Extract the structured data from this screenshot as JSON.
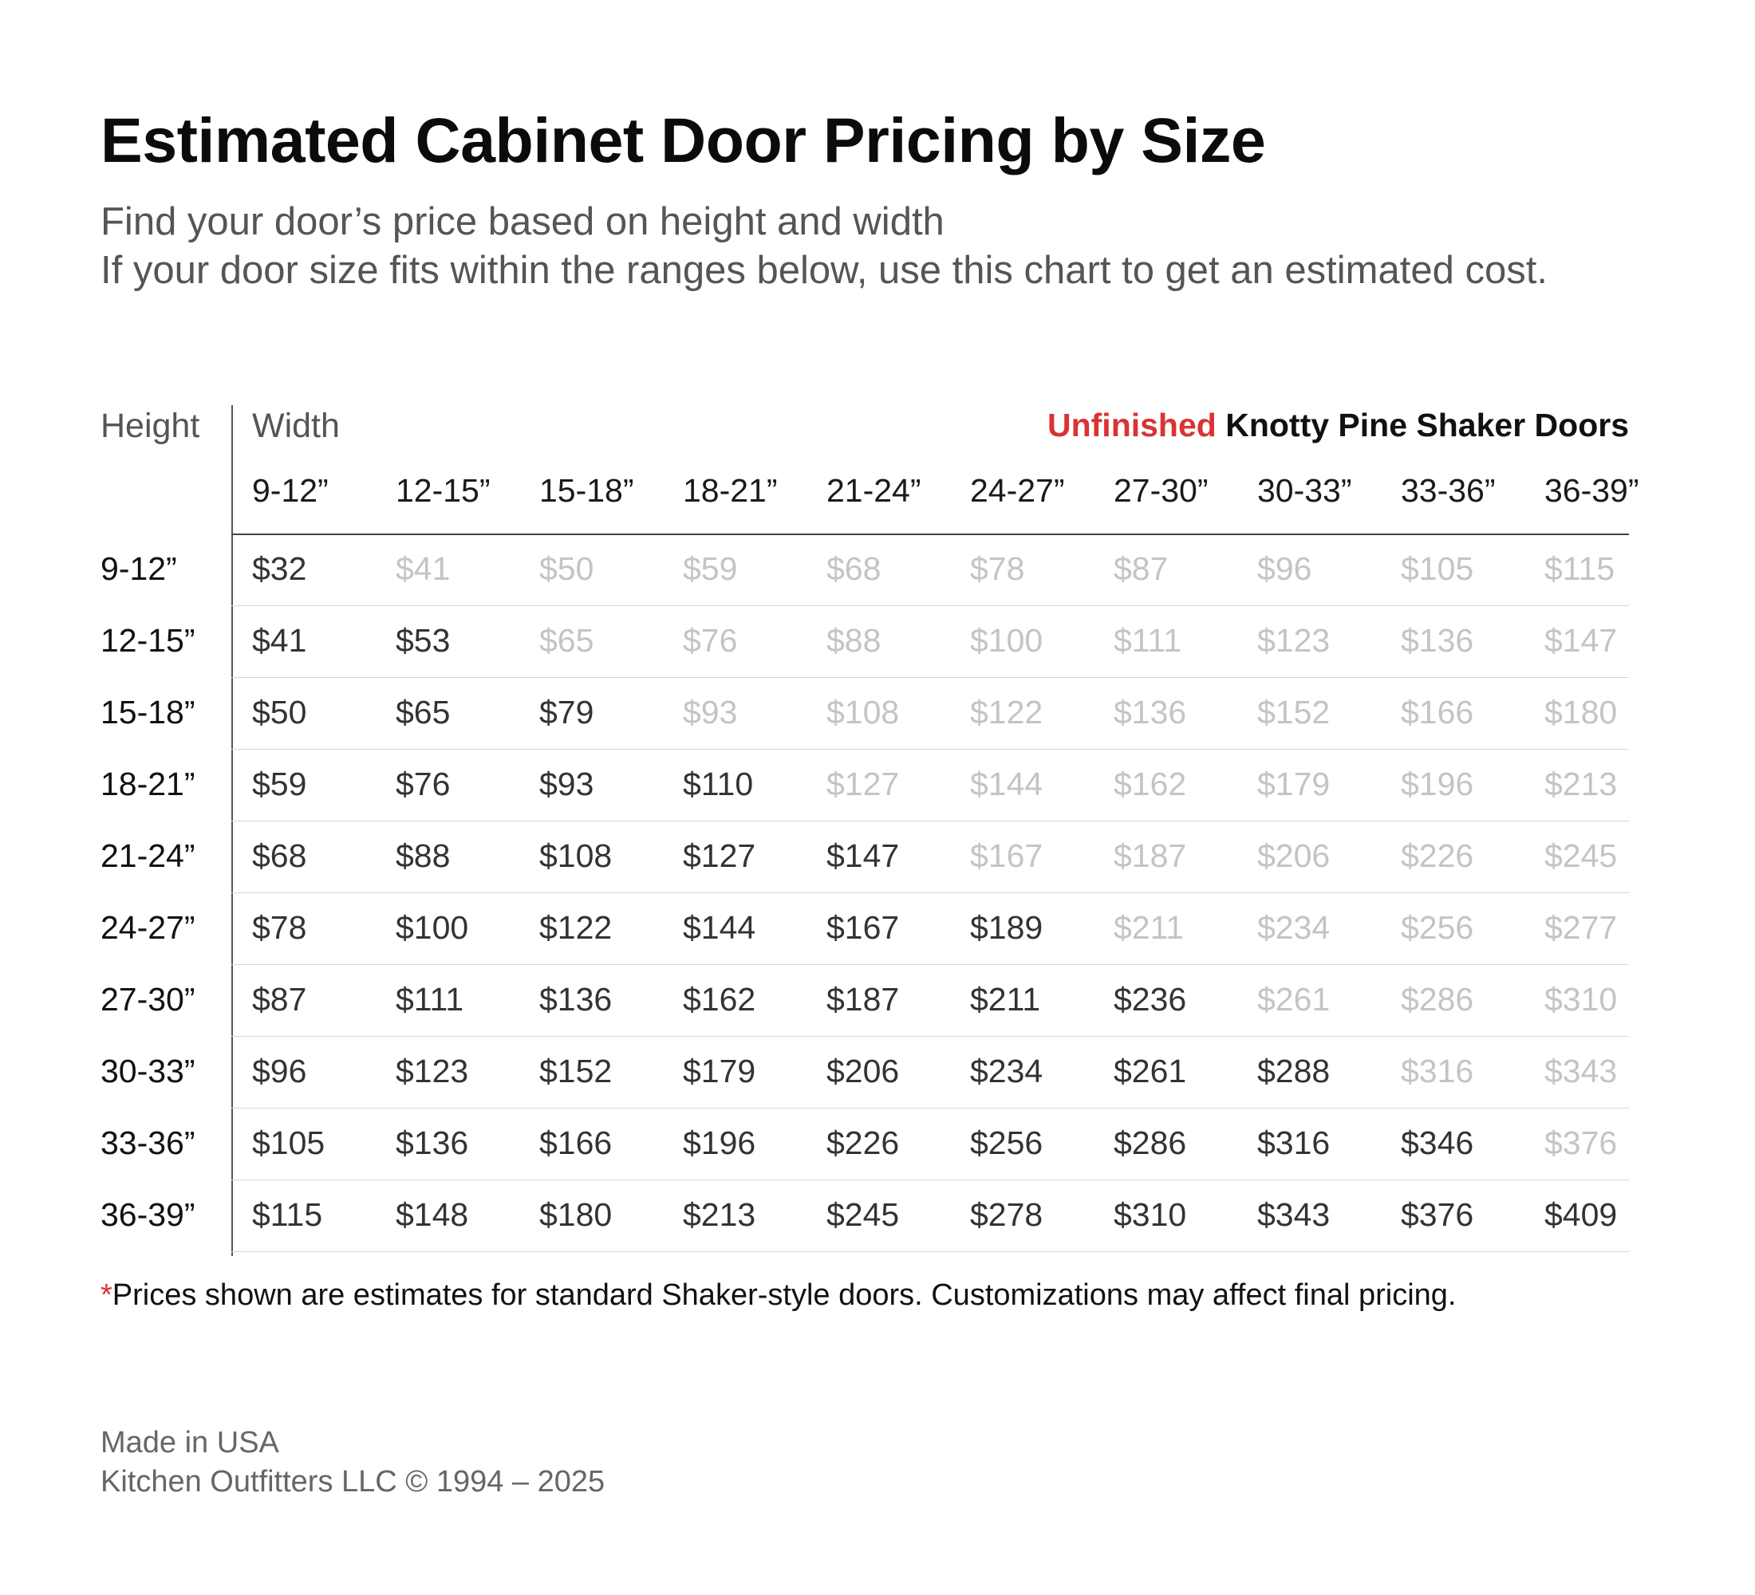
{
  "title": "Estimated Cabinet Door Pricing by Size",
  "subtitle": {
    "line1": "Find your door’s price based on height and width",
    "line2": "If your door size fits within the ranges below, use this chart to get an estimated cost."
  },
  "table": {
    "height_label": "Height",
    "width_label": "Width",
    "product_accent": "Unfinished",
    "product_rest": " Knotty Pine Shaker Doors",
    "columns": [
      "9-12”",
      "12-15”",
      "15-18”",
      "18-21”",
      "21-24”",
      "24-27”",
      "27-30”",
      "30-33”",
      "33-36”",
      "36-39”"
    ],
    "rows": [
      {
        "label": "9-12”",
        "cells": [
          "$32",
          "$41",
          "$50",
          "$59",
          "$68",
          "$78",
          "$87",
          "$96",
          "$105",
          "$115"
        ]
      },
      {
        "label": "12-15”",
        "cells": [
          "$41",
          "$53",
          "$65",
          "$76",
          "$88",
          "$100",
          "$111",
          "$123",
          "$136",
          "$147"
        ]
      },
      {
        "label": "15-18”",
        "cells": [
          "$50",
          "$65",
          "$79",
          "$93",
          "$108",
          "$122",
          "$136",
          "$152",
          "$166",
          "$180"
        ]
      },
      {
        "label": "18-21”",
        "cells": [
          "$59",
          "$76",
          "$93",
          "$110",
          "$127",
          "$144",
          "$162",
          "$179",
          "$196",
          "$213"
        ]
      },
      {
        "label": "21-24”",
        "cells": [
          "$68",
          "$88",
          "$108",
          "$127",
          "$147",
          "$167",
          "$187",
          "$206",
          "$226",
          "$245"
        ]
      },
      {
        "label": "24-27”",
        "cells": [
          "$78",
          "$100",
          "$122",
          "$144",
          "$167",
          "$189",
          "$211",
          "$234",
          "$256",
          "$277"
        ]
      },
      {
        "label": "27-30”",
        "cells": [
          "$87",
          "$111",
          "$136",
          "$162",
          "$187",
          "$211",
          "$236",
          "$261",
          "$286",
          "$310"
        ]
      },
      {
        "label": "30-33”",
        "cells": [
          "$96",
          "$123",
          "$152",
          "$179",
          "$206",
          "$234",
          "$261",
          "$288",
          "$316",
          "$343"
        ]
      },
      {
        "label": "33-36”",
        "cells": [
          "$105",
          "$136",
          "$166",
          "$196",
          "$226",
          "$256",
          "$286",
          "$316",
          "$346",
          "$376"
        ]
      },
      {
        "label": "36-39”",
        "cells": [
          "$115",
          "$148",
          "$180",
          "$213",
          "$245",
          "$278",
          "$310",
          "$343",
          "$376",
          "$409"
        ]
      }
    ],
    "dim_color": "#c4c4c4",
    "accent_color": "#d93333"
  },
  "footnote": {
    "star": "*",
    "text": "Prices shown are estimates for standard Shaker-style doors. Customizations may affect final pricing."
  },
  "footer": {
    "line1": "Made in USA",
    "line2": "Kitchen Outfitters LLC © 1994 – 2025"
  }
}
